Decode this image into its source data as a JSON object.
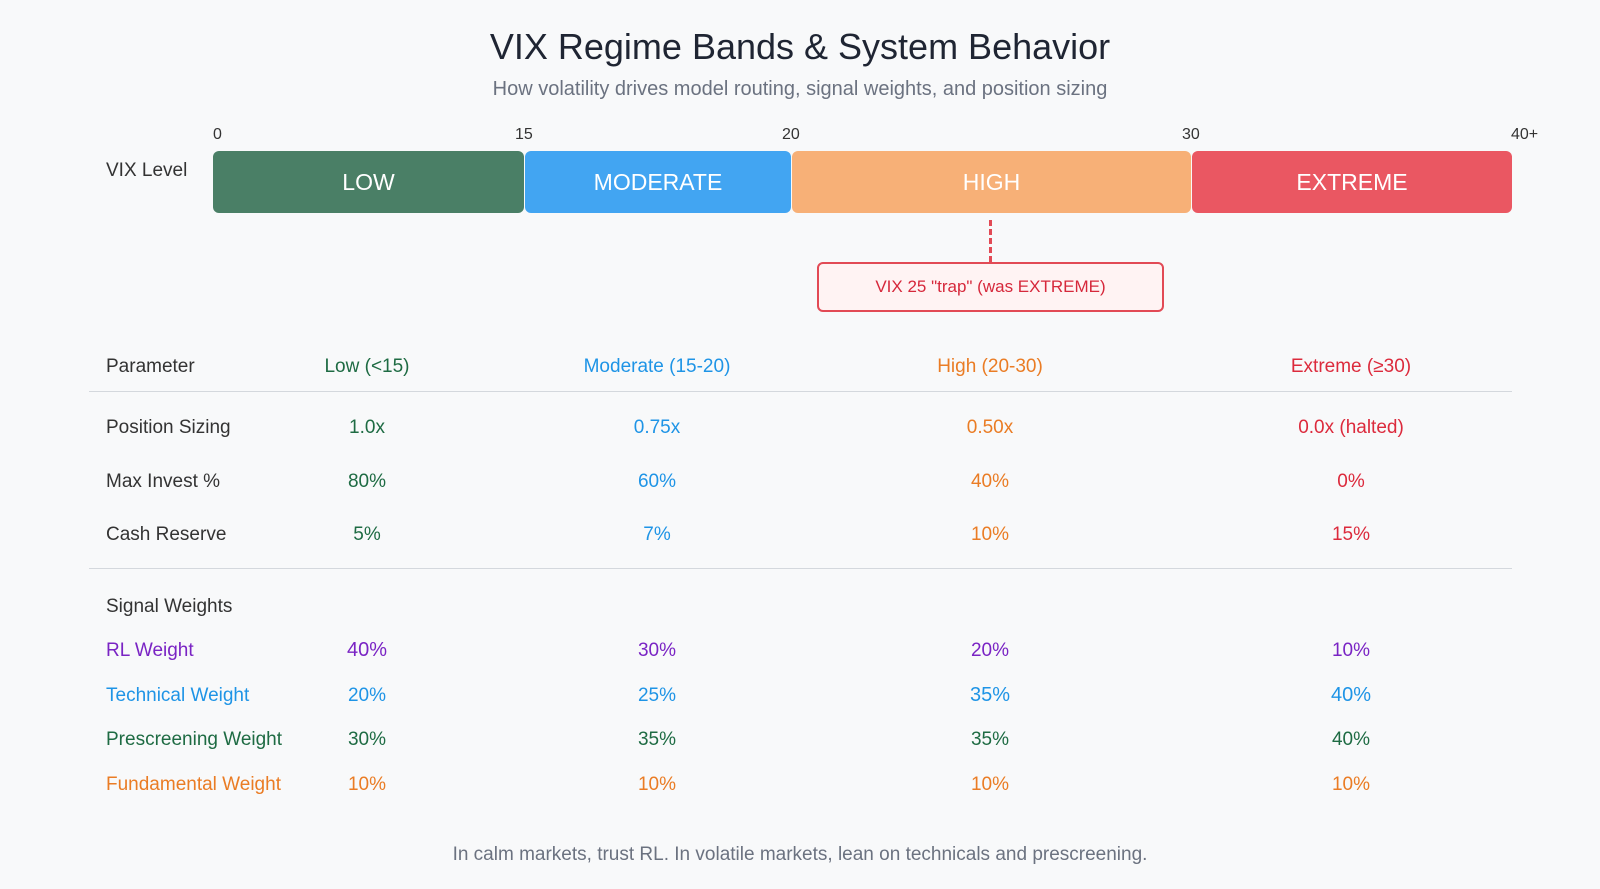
{
  "title": "VIX Regime Bands & System Behavior",
  "subtitle": "How volatility drives model routing, signal weights, and position sizing",
  "scale": {
    "label": "VIX Level",
    "ticks": [
      "0",
      "15",
      "20",
      "30",
      "40+"
    ],
    "bands": [
      {
        "label": "LOW",
        "from": 0,
        "to": 15,
        "color": "#4a7f66"
      },
      {
        "label": "MODERATE",
        "from": 15,
        "to": 20,
        "color": "#42a5f2"
      },
      {
        "label": "HIGH",
        "from": 20,
        "to": 30,
        "color": "#f7b077"
      },
      {
        "label": "EXTREME",
        "from": 30,
        "to": 40,
        "color": "#ea5762"
      }
    ]
  },
  "callout": {
    "text": "VIX 25 \"trap\" (was EXTREME)",
    "vix": 25
  },
  "table": {
    "header": {
      "parameter": "Parameter",
      "columns": [
        "Low (<15)",
        "Moderate (15-20)",
        "High (20-30)",
        "Extreme (≥30)"
      ]
    },
    "sizing_rows": [
      {
        "label": "Position Sizing",
        "values": [
          "1.0x",
          "0.75x",
          "0.50x",
          "0.0x (halted)"
        ]
      },
      {
        "label": "Max Invest %",
        "values": [
          "80%",
          "60%",
          "40%",
          "0%"
        ]
      },
      {
        "label": "Cash Reserve",
        "values": [
          "5%",
          "7%",
          "10%",
          "15%"
        ]
      }
    ],
    "signal_section_label": "Signal Weights",
    "signal_rows": [
      {
        "label": "RL Weight",
        "values": [
          "40%",
          "30%",
          "20%",
          "10%"
        ]
      },
      {
        "label": "Technical Weight",
        "values": [
          "20%",
          "25%",
          "35%",
          "40%"
        ]
      },
      {
        "label": "Prescreening Weight",
        "values": [
          "30%",
          "35%",
          "35%",
          "40%"
        ]
      },
      {
        "label": "Fundamental Weight",
        "values": [
          "10%",
          "10%",
          "10%",
          "10%"
        ]
      }
    ]
  },
  "footer": "In calm markets, trust RL. In volatile markets, lean on technicals and prescreening."
}
